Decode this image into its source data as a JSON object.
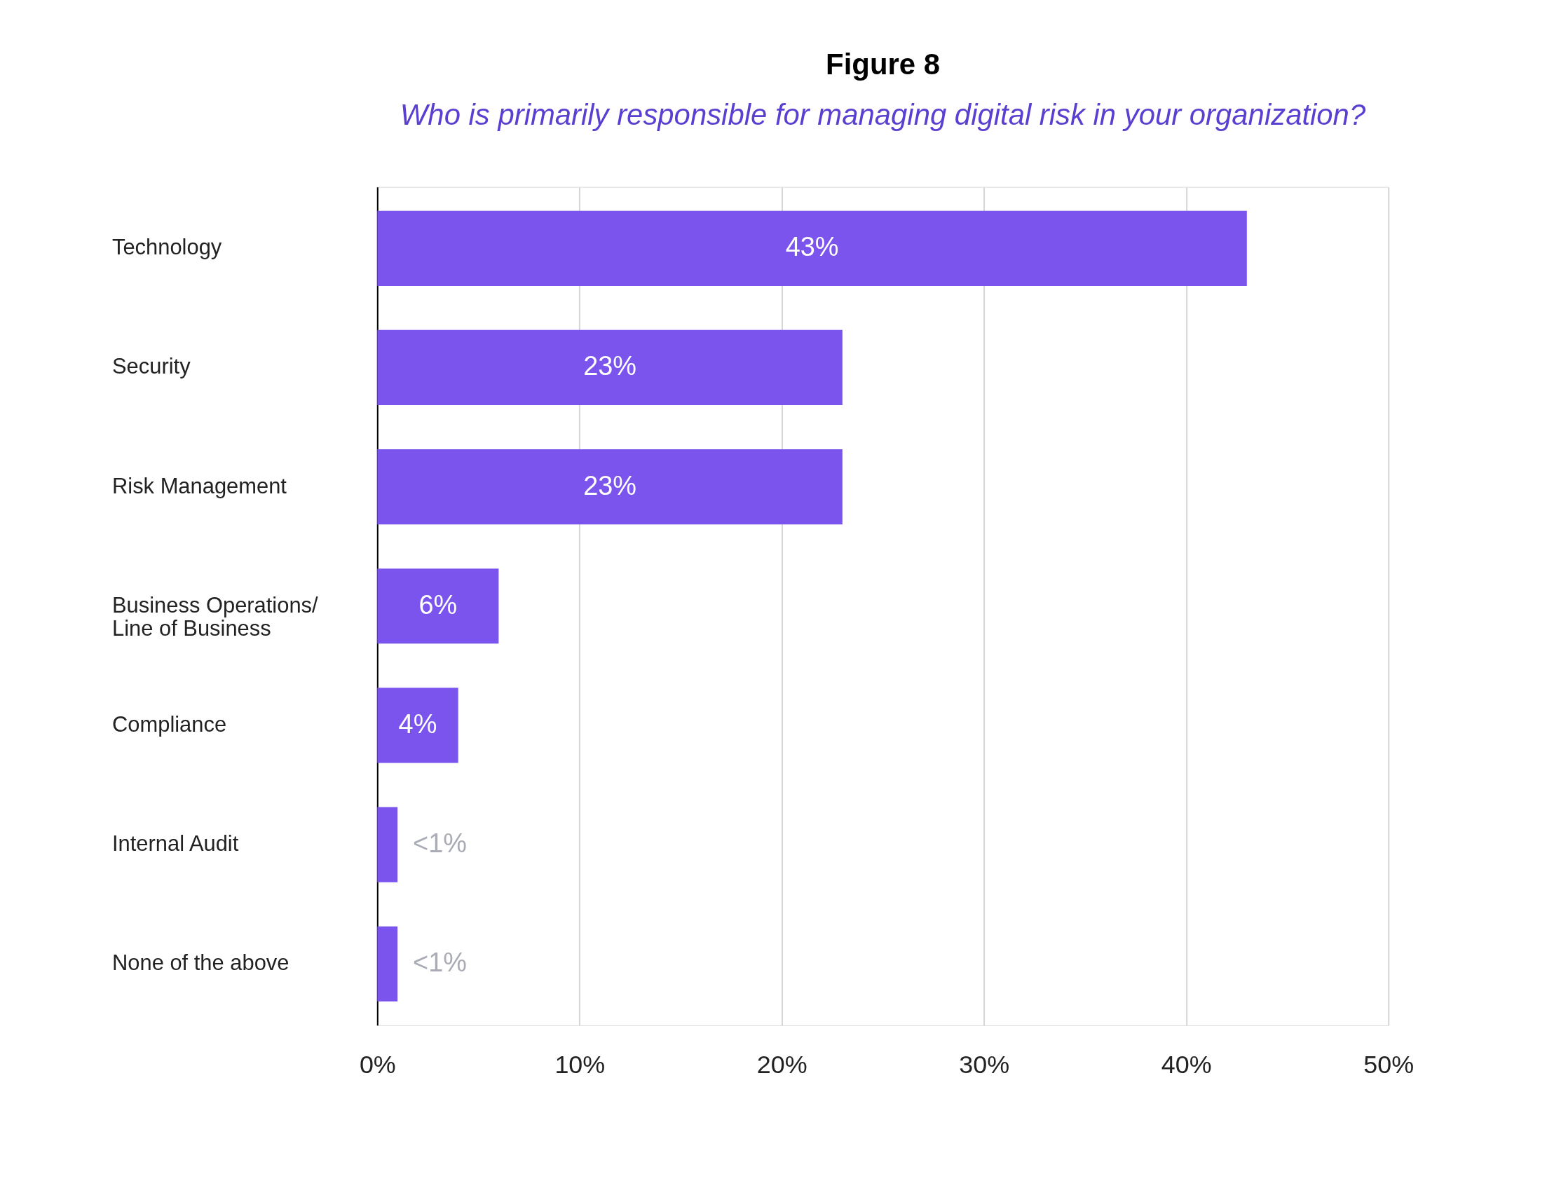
{
  "chart_data": {
    "type": "bar",
    "orientation": "horizontal",
    "title": "Figure 8",
    "subtitle": "Who is primarily responsible for managing digital risk in your organization?",
    "categories": [
      "Technology",
      "Security",
      "Risk Management",
      "Business Operations/\nLine of Business",
      "Compliance",
      "Internal Audit",
      "None of the above"
    ],
    "values": [
      43,
      23,
      23,
      6,
      4,
      1,
      1
    ],
    "value_labels": [
      "43%",
      "23%",
      "23%",
      "6%",
      "4%",
      "<1%",
      "<1%"
    ],
    "color": "#7b54ee",
    "xlim": [
      0,
      50
    ],
    "xticks": [
      {
        "value": 0,
        "label": "0%"
      },
      {
        "value": 10,
        "label": "10%"
      },
      {
        "value": 20,
        "label": "20%"
      },
      {
        "value": 30,
        "label": "30%"
      },
      {
        "value": 40,
        "label": "40%"
      },
      {
        "value": 50,
        "label": "50%"
      }
    ],
    "grid": "x"
  }
}
